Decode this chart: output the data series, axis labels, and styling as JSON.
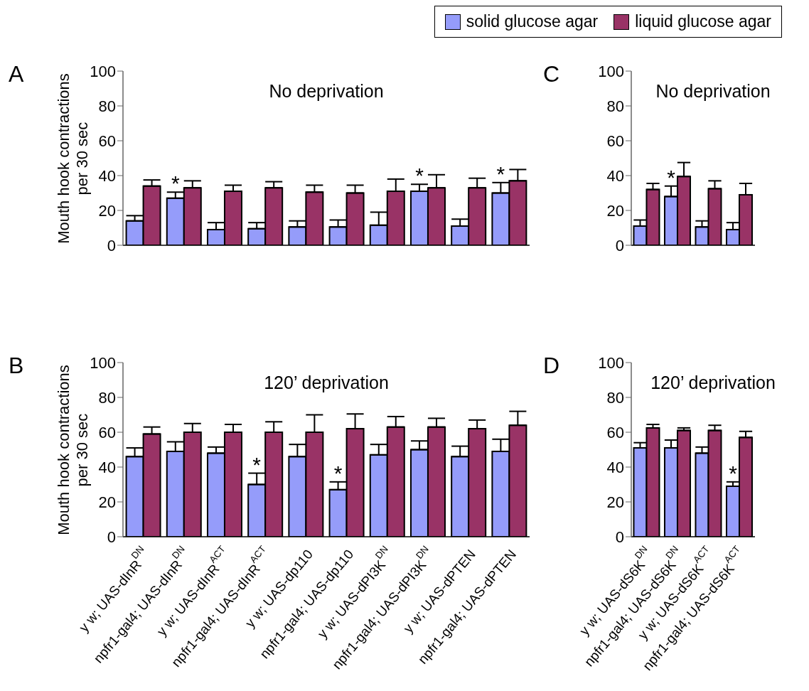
{
  "chart_data": [
    {
      "type": "bar",
      "title": "No deprivation",
      "ylabel": "Mouth hook contractions per 30 sec",
      "annotations": [
        "A",
        {
          "text": "*",
          "x": "npfr1-gal4; UAS-dInR$^{DN}$",
          "y": 30.5
        },
        {
          "text": "*",
          "x": "npfr1-gal4; UAS-dPI3K$^{DN}$",
          "y": 35
        },
        {
          "text": "*",
          "x": "npfr1-gal4; UAS-dPTEN",
          "y": 36
        }
      ],
      "categories": [
        "y w; UAS-dInR$^{DN}$",
        "npfr1-gal4; UAS-dInR$^{DN}$",
        "y w; UAS-dInR$^{ACT}$",
        "npfr1-gal4; UAS-dInR$^{ACT}$",
        "y w; UAS-dp110",
        "npfr1-gal4; UAS-dp110",
        "y w; UAS-dPI3K$^{DN}$",
        "npfr1-gal4; UAS-dPI3K$^{DN}$",
        "y w; UAS-dPTEN",
        "npfr1-gal4; UAS-dPTEN"
      ],
      "series": [
        {
          "name": "solid glucose agar",
          "color": "#959cfa",
          "values": [
            14,
            27,
            9,
            9.5,
            10.5,
            10.5,
            11.5,
            31,
            11,
            30
          ],
          "errors": [
            3,
            3.5,
            4,
            3.5,
            3.5,
            4,
            7.5,
            4,
            4,
            6
          ]
        },
        {
          "name": "liquid glucose agar",
          "color": "#993366",
          "values": [
            34,
            33,
            31,
            33,
            30.5,
            30,
            31,
            33,
            33,
            37
          ],
          "errors": [
            3.5,
            4,
            3.5,
            3.5,
            4,
            4.5,
            7,
            7.5,
            5.5,
            6.5
          ]
        }
      ],
      "ylim": [
        0,
        100
      ],
      "yticks": [
        0,
        20,
        40,
        60,
        80,
        100
      ],
      "tick_labels": "y",
      "legend": "top right"
    },
    {
      "type": "bar",
      "title": "120’ deprivation",
      "ylabel": "Mouth hook contractions per 30 sec",
      "annotations": [
        "B",
        {
          "text": "*",
          "x": "npfr1-gal4; UAS-dInR$^{ACT}$",
          "y": 36.5
        },
        {
          "text": "*",
          "x": "npfr1-gal4; UAS-dp110",
          "y": 31.5
        }
      ],
      "categories": [
        "y w; UAS-dInR$^{DN}$",
        "npfr1-gal4; UAS-dInR$^{DN}$",
        "y w; UAS-dInR$^{ACT}$",
        "npfr1-gal4; UAS-dInR$^{ACT}$",
        "y w; UAS-dp110",
        "npfr1-gal4; UAS-dp110",
        "y w; UAS-dPI3K$^{DN}$",
        "npfr1-gal4; UAS-dPI3K$^{DN}$",
        "y w; UAS-dPTEN",
        "npfr1-gal4; UAS-dPTEN"
      ],
      "series": [
        {
          "color": "#959cfa",
          "values": [
            46,
            49,
            48,
            30,
            46,
            27,
            47,
            50,
            46,
            49
          ],
          "errors": [
            5,
            5.5,
            3.5,
            6.5,
            7,
            4.5,
            6,
            5,
            6,
            7
          ]
        },
        {
          "color": "#993366",
          "values": [
            59,
            60,
            60,
            60,
            60,
            62,
            63,
            63,
            62,
            64
          ],
          "errors": [
            4,
            5,
            4.5,
            6,
            10,
            8.5,
            6,
            5,
            5,
            8
          ]
        }
      ],
      "ylim": [
        0,
        100
      ],
      "yticks": [
        0,
        20,
        40,
        60,
        80,
        100
      ]
    },
    {
      "type": "bar",
      "title": "No deprivation",
      "annotations": [
        "C",
        {
          "text": "*",
          "x": "npfr1-gal4; UAS-dS6K$^{DN}$",
          "y": 34
        }
      ],
      "categories": [
        "y w; UAS-dS6K$^{DN}$",
        "npfr1-gal4; UAS-dS6K$^{DN}$",
        "y w; UAS-dS6K$^{ACT}$",
        "npfr1-gal4; UAS-dS6K$^{ACT}$"
      ],
      "series": [
        {
          "color": "#959cfa",
          "values": [
            11,
            28,
            10.5,
            9
          ],
          "errors": [
            3.5,
            6,
            3.5,
            4
          ]
        },
        {
          "color": "#993366",
          "values": [
            32,
            39.5,
            32.5,
            29
          ],
          "errors": [
            3.5,
            8,
            4.5,
            6.5
          ]
        }
      ],
      "ylim": [
        0,
        100
      ],
      "yticks": [
        0,
        20,
        40,
        60,
        80,
        100
      ],
      "tick_labels": "y"
    },
    {
      "type": "bar",
      "title": "120’ deprivation",
      "annotations": [
        "D",
        {
          "text": "*",
          "x": "npfr1-gal4; UAS-dS6K$^{ACT}$",
          "y": 31.5
        }
      ],
      "categories": [
        "y w; UAS-dS6K$^{DN}$",
        "npfr1-gal4; UAS-dS6K$^{DN}$",
        "y w; UAS-dS6K$^{ACT}$",
        "npfr1-gal4; UAS-dS6K$^{ACT}$"
      ],
      "series": [
        {
          "color": "#959cfa",
          "values": [
            51,
            51,
            48,
            29
          ],
          "errors": [
            3,
            4.5,
            3.5,
            2.5
          ]
        },
        {
          "color": "#993366",
          "values": [
            62.5,
            61,
            61,
            57
          ],
          "errors": [
            2,
            1.5,
            3,
            3.5
          ]
        }
      ],
      "ylim": [
        0,
        100
      ],
      "yticks": [
        0,
        20,
        40,
        60,
        80,
        100
      ]
    }
  ]
}
